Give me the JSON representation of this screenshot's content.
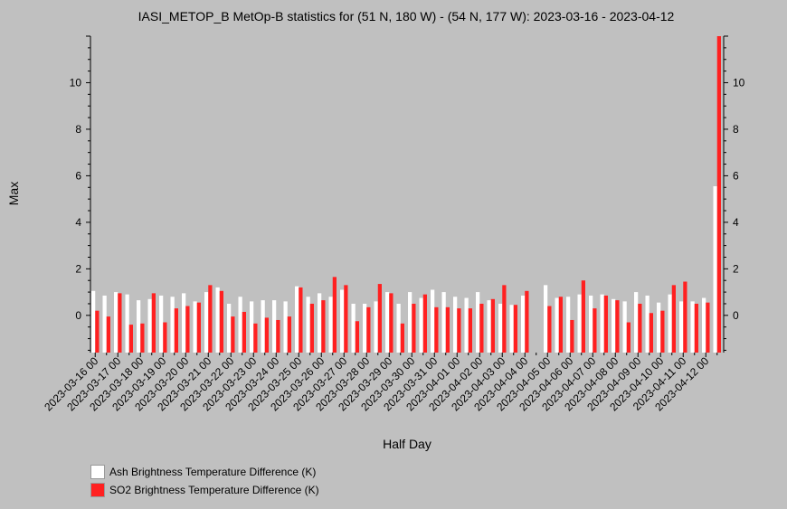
{
  "chart_data": {
    "type": "bar",
    "title": "IASI_METOP_B MetOp-B statistics for (51 N, 180 W) - (54 N, 177 W): 2023-03-16 - 2023-04-12",
    "xlabel": "Half Day",
    "ylabel": "Max",
    "ylim": [
      -1.6,
      12
    ],
    "yticks": [
      0,
      2,
      4,
      6,
      8,
      10
    ],
    "x_tick_labels": [
      "2023-03-16 00",
      "2023-03-17 00",
      "2023-03-18 00",
      "2023-03-19 00",
      "2023-03-20 00",
      "2023-03-21 00",
      "2023-03-22 00",
      "2023-03-23 00",
      "2023-03-24 00",
      "2023-03-25 00",
      "2023-03-26 00",
      "2023-03-27 00",
      "2023-03-28 00",
      "2023-03-29 00",
      "2023-03-30 00",
      "2023-03-31 00",
      "2023-04-01 00",
      "2023-04-02 00",
      "2023-04-03 00",
      "2023-04-04 00",
      "2023-04-05 00",
      "2023-04-06 00",
      "2023-04-07 00",
      "2023-04-08 00",
      "2023-04-09 00",
      "2023-04-10 00",
      "2023-04-11 00",
      "2023-04-12 00"
    ],
    "series": [
      {
        "name": "Ash Brightness Temperature Difference (K)",
        "color": "#ffffff",
        "values": [
          1.05,
          0.85,
          1.0,
          0.9,
          0.65,
          0.7,
          0.85,
          0.8,
          0.95,
          0.6,
          1.0,
          1.2,
          0.5,
          0.8,
          0.6,
          0.65,
          0.65,
          0.6,
          1.25,
          0.8,
          0.95,
          0.8,
          1.1,
          0.5,
          0.5,
          0.6,
          1.0,
          0.5,
          1.0,
          0.75,
          1.1,
          1.0,
          0.8,
          0.75,
          1.0,
          0.65,
          0.5,
          0.45,
          0.85,
          null,
          1.3,
          0.75,
          0.8,
          0.9,
          0.85,
          0.9,
          0.7,
          0.6,
          1.0,
          0.85,
          0.55,
          0.9,
          0.6,
          0.6,
          0.75,
          5.55
        ]
      },
      {
        "name": "SO2 Brightness Temperature Difference (K)",
        "color": "#ff2020",
        "values": [
          0.2,
          -0.05,
          0.95,
          -0.4,
          -0.35,
          0.95,
          -0.3,
          0.3,
          0.4,
          0.55,
          1.3,
          1.05,
          -0.05,
          0.15,
          -0.35,
          -0.1,
          -0.2,
          -0.05,
          1.2,
          0.5,
          0.65,
          1.65,
          1.3,
          -0.25,
          0.35,
          1.35,
          0.95,
          -0.35,
          0.5,
          0.9,
          0.35,
          0.35,
          0.3,
          0.3,
          0.5,
          0.7,
          1.3,
          0.45,
          1.05,
          null,
          0.4,
          0.8,
          -0.2,
          1.5,
          0.3,
          0.85,
          0.65,
          -0.3,
          0.5,
          0.1,
          0.2,
          1.3,
          1.45,
          0.5,
          0.55,
          12.0
        ]
      }
    ],
    "legend_position": "bottom-left",
    "grid": false
  }
}
